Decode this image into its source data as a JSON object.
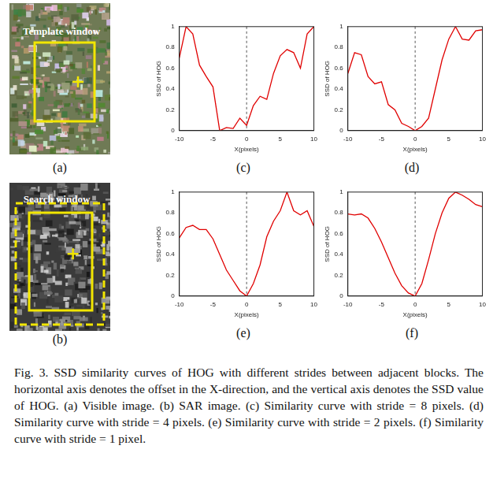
{
  "images": [
    {
      "label": "(a)",
      "text": "Template window",
      "kind": "visible"
    },
    {
      "label": "(b)",
      "text": "Search window",
      "kind": "sar"
    }
  ],
  "chart_data": [
    {
      "type": "line",
      "label": "(c)",
      "x_label": "X(pixels)",
      "y_label": "SSD of HOG",
      "color": "#e00000",
      "grid": false,
      "reference_x": 0,
      "x": [
        -10,
        -9,
        -8,
        -7,
        -6,
        -5,
        -4,
        -3,
        -2,
        -1,
        0,
        1,
        2,
        3,
        4,
        5,
        6,
        7,
        8,
        9,
        10
      ],
      "values": [
        0.7,
        1.0,
        0.93,
        0.63,
        0.52,
        0.42,
        0.0,
        0.03,
        0.02,
        0.12,
        0.05,
        0.24,
        0.33,
        0.3,
        0.55,
        0.72,
        0.78,
        0.75,
        0.6,
        0.93,
        1.0
      ],
      "xlim": [
        -10,
        10
      ],
      "xticks": [
        -10,
        -5,
        0,
        5,
        10
      ],
      "ylim": [
        0,
        1
      ],
      "yticks": [
        0,
        0.2,
        0.4,
        0.6,
        0.8,
        1
      ]
    },
    {
      "type": "line",
      "label": "(d)",
      "x_label": "X(pixels)",
      "y_label": "SSD of HOG",
      "color": "#e00000",
      "grid": false,
      "reference_x": 0,
      "x": [
        -10,
        -9,
        -8,
        -7,
        -6,
        -5,
        -4,
        -3,
        -2,
        -1,
        0,
        1,
        2,
        3,
        4,
        5,
        6,
        7,
        8,
        9,
        10
      ],
      "values": [
        0.55,
        0.75,
        0.73,
        0.52,
        0.45,
        0.47,
        0.25,
        0.2,
        0.07,
        0.04,
        0.0,
        0.04,
        0.12,
        0.4,
        0.68,
        0.88,
        1.0,
        0.88,
        0.87,
        0.96,
        0.97
      ],
      "xlim": [
        -10,
        10
      ],
      "xticks": [
        -10,
        -5,
        0,
        5,
        10
      ],
      "ylim": [
        0,
        1
      ],
      "yticks": [
        0,
        0.2,
        0.4,
        0.6,
        0.8,
        1
      ]
    },
    {
      "type": "line",
      "label": "(e)",
      "x_label": "X(pixels)",
      "y_label": "SSD of HOG",
      "color": "#e00000",
      "grid": false,
      "reference_x": 0,
      "x": [
        -10,
        -9,
        -8,
        -7,
        -6,
        -5,
        -4,
        -3,
        -2,
        -1,
        0,
        1,
        2,
        3,
        4,
        5,
        6,
        7,
        8,
        9,
        10
      ],
      "values": [
        0.56,
        0.66,
        0.68,
        0.64,
        0.64,
        0.55,
        0.4,
        0.25,
        0.15,
        0.05,
        0.0,
        0.12,
        0.3,
        0.57,
        0.72,
        0.82,
        1.0,
        0.82,
        0.78,
        0.82,
        0.67
      ],
      "xlim": [
        -10,
        10
      ],
      "xticks": [
        -10,
        -5,
        0,
        5,
        10
      ],
      "ylim": [
        0,
        1
      ],
      "yticks": [
        0,
        0.2,
        0.4,
        0.6,
        0.8,
        1
      ]
    },
    {
      "type": "line",
      "label": "(f)",
      "x_label": "X(pixels)",
      "y_label": "SSD of HOG",
      "color": "#e00000",
      "grid": false,
      "reference_x": 0,
      "x": [
        -10,
        -9,
        -8,
        -7,
        -6,
        -5,
        -4,
        -3,
        -2,
        -1,
        0,
        1,
        2,
        3,
        4,
        5,
        6,
        7,
        8,
        9,
        10
      ],
      "values": [
        0.79,
        0.78,
        0.79,
        0.75,
        0.65,
        0.52,
        0.37,
        0.22,
        0.1,
        0.03,
        0.0,
        0.12,
        0.35,
        0.6,
        0.8,
        0.94,
        1.0,
        0.97,
        0.93,
        0.88,
        0.86
      ],
      "xlim": [
        -10,
        10
      ],
      "xticks": [
        -10,
        -5,
        0,
        5,
        10
      ],
      "ylim": [
        0,
        1
      ],
      "yticks": [
        0,
        0.2,
        0.4,
        0.6,
        0.8,
        1
      ]
    }
  ],
  "caption": "Fig. 3.  SSD similarity curves of HOG with different strides between adjacent blocks. The horizontal axis denotes the offset in the X-direction, and the vertical axis denotes the SSD value of HOG. (a) Visible image. (b) SAR image. (c) Similarity curve with stride = 8 pixels. (d) Similarity curve with stride = 4 pixels. (e) Similarity curve with stride = 2 pixels. (f) Similarity curve with stride = 1 pixel."
}
